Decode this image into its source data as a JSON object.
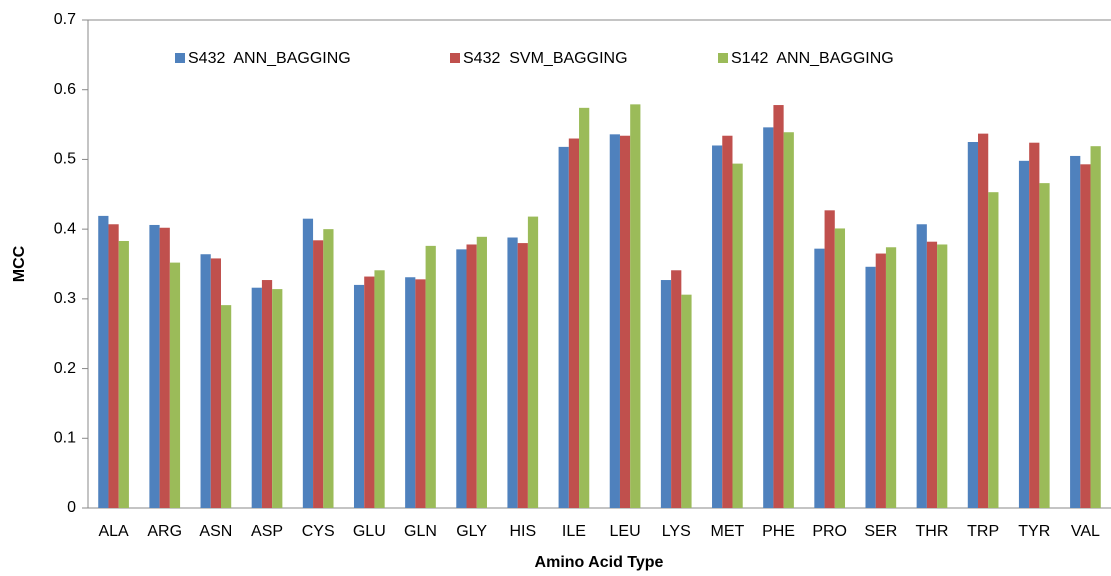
{
  "chart_data": {
    "type": "bar",
    "x_label": "Amino Acid Type",
    "y_label": "MCC",
    "categories": [
      "ALA",
      "ARG",
      "ASN",
      "ASP",
      "CYS",
      "GLU",
      "GLN",
      "GLY",
      "HIS",
      "ILE",
      "LEU",
      "LYS",
      "MET",
      "PHE",
      "PRO",
      "SER",
      "THR",
      "TRP",
      "TYR",
      "VAL"
    ],
    "series": [
      {
        "name": "S432  ANN_BAGGING",
        "color": "#4f81bd",
        "values": [
          0.419,
          0.406,
          0.364,
          0.316,
          0.415,
          0.32,
          0.331,
          0.371,
          0.388,
          0.518,
          0.536,
          0.327,
          0.52,
          0.546,
          0.372,
          0.346,
          0.407,
          0.525,
          0.498,
          0.505
        ]
      },
      {
        "name": "S432  SVM_BAGGING",
        "color": "#c0504d",
        "values": [
          0.407,
          0.402,
          0.358,
          0.327,
          0.384,
          0.332,
          0.328,
          0.378,
          0.38,
          0.53,
          0.534,
          0.341,
          0.534,
          0.578,
          0.427,
          0.365,
          0.382,
          0.537,
          0.524,
          0.493
        ]
      },
      {
        "name": "S142  ANN_BAGGING",
        "color": "#9bbb59",
        "values": [
          0.383,
          0.352,
          0.291,
          0.314,
          0.4,
          0.341,
          0.376,
          0.389,
          0.418,
          0.574,
          0.579,
          0.306,
          0.494,
          0.539,
          0.401,
          0.374,
          0.378,
          0.453,
          0.466,
          0.519
        ]
      }
    ],
    "ylim": [
      0,
      0.7
    ],
    "yticks": [
      0,
      0.1,
      0.2,
      0.3,
      0.4,
      0.5,
      0.6,
      0.7
    ],
    "grid": false,
    "legend": "top"
  }
}
